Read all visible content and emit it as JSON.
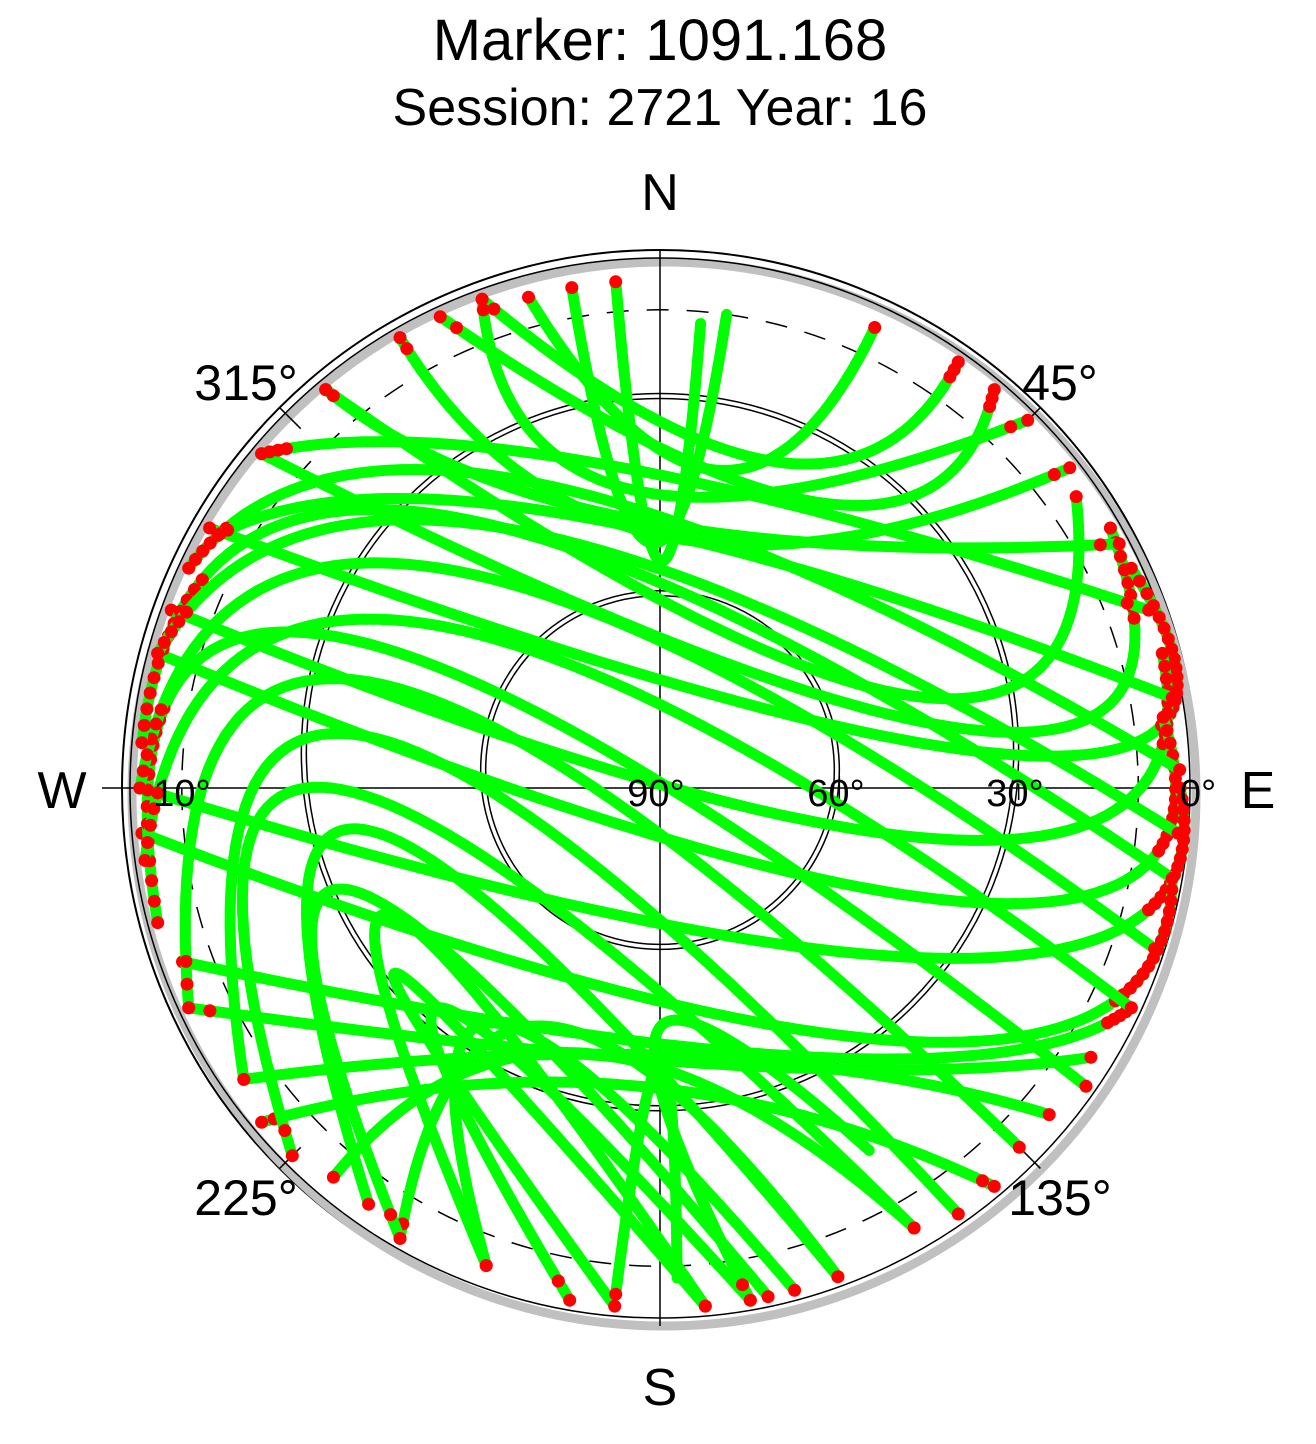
{
  "title": "Marker: 1091.168",
  "subtitle": "Session: 2721 Year: 16",
  "chart_data": {
    "type": "scatter",
    "projection": "polar-skyplot",
    "title": "Marker: 1091.168",
    "subtitle": "Session: 2721 Year: 16",
    "cardinal_labels": {
      "north": "N",
      "east": "E",
      "south": "S",
      "west": "W"
    },
    "azimuth_labels": [
      {
        "azimuth": 45,
        "text": "45°"
      },
      {
        "azimuth": 135,
        "text": "135°"
      },
      {
        "azimuth": 225,
        "text": "225°"
      },
      {
        "azimuth": 315,
        "text": "315°"
      }
    ],
    "elevation_labels": [
      {
        "elevation": 0,
        "text": "0°"
      },
      {
        "elevation": 30,
        "text": "30°"
      },
      {
        "elevation": 60,
        "text": "60°"
      },
      {
        "elevation": 90,
        "text": "90°"
      },
      {
        "elevation": 10,
        "text": "10°"
      }
    ],
    "elevation_circles": [
      30,
      60
    ],
    "elevation_cutoff_dashed": 10,
    "colors": {
      "above_cutoff": "#00ff00",
      "below_cutoff": "#ff0000",
      "horizon_band": "#c0c0c0",
      "grid": "#000000"
    },
    "tracks": [
      {
        "start": [
          355,
          5
        ],
        "peak": [
          0,
          52
        ],
        "end": [
          5,
          12
        ]
      },
      {
        "start": [
          350,
          5
        ],
        "peak": [
          358,
          49
        ],
        "end": [
          8,
          10
        ]
      },
      {
        "start": [
          345,
          5
        ],
        "peak": [
          10,
          36
        ],
        "end": [
          25,
          5
        ]
      },
      {
        "start": [
          340,
          3
        ],
        "peak": [
          20,
          32
        ],
        "end": [
          35,
          3
        ]
      },
      {
        "start": [
          335,
          3
        ],
        "peak": [
          30,
          35
        ],
        "end": [
          40,
          3
        ]
      },
      {
        "start": [
          320,
          3
        ],
        "peak": [
          70,
          45
        ],
        "end": [
          55,
          5
        ]
      },
      {
        "start": [
          310,
          3
        ],
        "peak": [
          80,
          35
        ],
        "end": [
          60,
          3
        ]
      },
      {
        "start": [
          300,
          3
        ],
        "peak": [
          85,
          28
        ],
        "end": [
          65,
          3
        ]
      },
      {
        "start": [
          290,
          3
        ],
        "peak": [
          100,
          40
        ],
        "end": [
          75,
          3
        ]
      },
      {
        "start": [
          285,
          3
        ],
        "peak": [
          110,
          34
        ],
        "end": [
          82,
          5
        ]
      },
      {
        "start": [
          270,
          3
        ],
        "peak": [
          120,
          33
        ],
        "end": [
          90,
          3
        ]
      },
      {
        "start": [
          265,
          3
        ],
        "peak": [
          135,
          30
        ],
        "end": [
          100,
          3
        ]
      },
      {
        "start": [
          250,
          5
        ],
        "peak": [
          150,
          38
        ],
        "end": [
          115,
          3
        ]
      },
      {
        "start": [
          245,
          3
        ],
        "peak": [
          165,
          42
        ],
        "end": [
          122,
          5
        ]
      },
      {
        "start": [
          235,
          5
        ],
        "peak": [
          175,
          45
        ],
        "end": [
          130,
          5
        ]
      },
      {
        "start": [
          230,
          3
        ],
        "peak": [
          185,
          40
        ],
        "end": [
          140,
          3
        ]
      },
      {
        "start": [
          220,
          5
        ],
        "peak": [
          195,
          44
        ],
        "end": [
          150,
          5
        ]
      },
      {
        "start": [
          210,
          3
        ],
        "peak": [
          205,
          46
        ],
        "end": [
          160,
          3
        ]
      },
      {
        "start": [
          200,
          5
        ],
        "peak": [
          215,
          42
        ],
        "end": [
          165,
          3
        ]
      },
      {
        "start": [
          190,
          3
        ],
        "peak": [
          225,
          38
        ],
        "end": [
          170,
          3
        ]
      },
      {
        "start": [
          185,
          3
        ],
        "peak": [
          235,
          36
        ],
        "end": [
          175,
          3
        ]
      },
      {
        "start": [
          175,
          3
        ],
        "peak": [
          245,
          40
        ],
        "end": [
          200,
          5
        ]
      },
      {
        "start": [
          168,
          3
        ],
        "peak": [
          252,
          35
        ],
        "end": [
          210,
          3
        ]
      },
      {
        "start": [
          160,
          3
        ],
        "peak": [
          262,
          40
        ],
        "end": [
          215,
          5
        ]
      },
      {
        "start": [
          150,
          5
        ],
        "peak": [
          270,
          35
        ],
        "end": [
          225,
          3
        ]
      },
      {
        "start": [
          145,
          3
        ],
        "peak": [
          280,
          40
        ],
        "end": [
          235,
          5
        ]
      },
      {
        "start": [
          135,
          5
        ],
        "peak": [
          290,
          38
        ],
        "end": [
          245,
          3
        ]
      },
      {
        "start": [
          125,
          3
        ],
        "peak": [
          295,
          30
        ],
        "end": [
          255,
          3
        ]
      },
      {
        "start": [
          115,
          3
        ],
        "peak": [
          305,
          42
        ],
        "end": [
          262,
          3
        ]
      },
      {
        "start": [
          108,
          3
        ],
        "peak": [
          315,
          38
        ],
        "end": [
          270,
          3
        ]
      },
      {
        "start": [
          100,
          3
        ],
        "peak": [
          320,
          30
        ],
        "end": [
          275,
          3
        ]
      },
      {
        "start": [
          95,
          3
        ],
        "peak": [
          330,
          40
        ],
        "end": [
          285,
          3
        ]
      },
      {
        "start": [
          88,
          3
        ],
        "peak": [
          338,
          35
        ],
        "end": [
          295,
          3
        ]
      },
      {
        "start": [
          80,
          3
        ],
        "peak": [
          342,
          42
        ],
        "end": [
          300,
          5
        ]
      },
      {
        "start": [
          70,
          3
        ],
        "peak": [
          350,
          35
        ],
        "end": [
          310,
          3
        ]
      },
      {
        "start": [
          62,
          3
        ],
        "peak": [
          355,
          45
        ],
        "end": [
          320,
          3
        ]
      },
      {
        "start": [
          52,
          3
        ],
        "peak": [
          2,
          48
        ],
        "end": [
          330,
          3
        ]
      },
      {
        "start": [
          45,
          3
        ],
        "peak": [
          355,
          40
        ],
        "end": [
          340,
          3
        ]
      },
      {
        "start": [
          170,
          3
        ],
        "peak": [
          180,
          50
        ],
        "end": [
          150,
          20
        ]
      },
      {
        "start": [
          185,
          5
        ],
        "peak": [
          180,
          44
        ],
        "end": [
          178,
          8
        ]
      }
    ]
  }
}
